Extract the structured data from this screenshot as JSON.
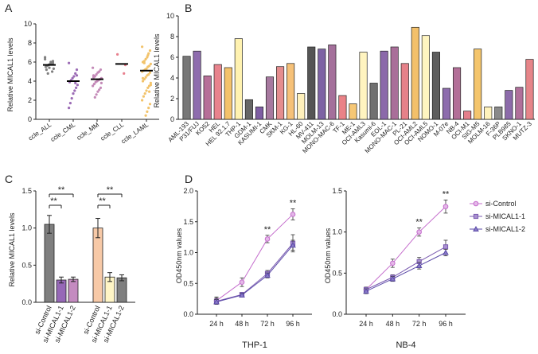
{
  "chart_data": [
    {
      "panel": "A",
      "type": "scatter",
      "ylabel": "Relative MICAL1 levels",
      "ylim": [
        0,
        10
      ],
      "yticks": [
        "0",
        "2",
        "4",
        "6",
        "8",
        "10"
      ],
      "categories": [
        "ccle_ALL",
        "ccle_CML",
        "ccle_MM",
        "ccle_CLL",
        "ccle_LAML"
      ],
      "colors": [
        "#7f7f7f",
        "#9b6bb5",
        "#c48ab8",
        "#e8808e",
        "#f2c36b"
      ],
      "medians": [
        5.7,
        4.0,
        4.2,
        5.8,
        5.1
      ],
      "points": [
        [
          6.3,
          6.1,
          5.9,
          5.8,
          5.7,
          5.6,
          5.5,
          5.3,
          5.0,
          6.0,
          5.4,
          4.8,
          5.2,
          6.5,
          5.9
        ],
        [
          5.9,
          5.2,
          4.8,
          4.5,
          4.3,
          4.1,
          3.9,
          3.6,
          3.3,
          3.0,
          2.7,
          2.2,
          1.7,
          1.2,
          4.6,
          3.8
        ],
        [
          5.4,
          5.2,
          5.0,
          4.9,
          4.7,
          4.5,
          4.4,
          4.3,
          4.2,
          4.1,
          4.0,
          3.9,
          3.7,
          3.5,
          3.3,
          3.1,
          2.9,
          2.6,
          2.3,
          4.6,
          3.8
        ],
        [
          6.8,
          5.7,
          4.8
        ],
        [
          7.6,
          7.2,
          6.9,
          6.5,
          6.3,
          6.1,
          6.0,
          5.8,
          5.6,
          5.5,
          5.3,
          5.2,
          5.1,
          5.0,
          4.9,
          4.7,
          4.6,
          4.4,
          4.2,
          4.0,
          3.8,
          3.5,
          3.3,
          3.0,
          2.7,
          2.4,
          2.0,
          1.6,
          1.2,
          0.8,
          0.4,
          5.9,
          4.3,
          3.6,
          2.9,
          6.7
        ]
      ]
    },
    {
      "panel": "B",
      "type": "bar",
      "ylabel": "Relative MICAL1 levels",
      "ylim": [
        0,
        10
      ],
      "yticks": [
        "0",
        "2",
        "4",
        "6",
        "8",
        "10"
      ],
      "categories": [
        "AML-193",
        "P31/FUJ",
        "KO52",
        "HEL",
        "HEL 92.1.7",
        "THP-1",
        "GDM-1",
        "KASUMI-1",
        "CMK",
        "SKM-1",
        "KG-1",
        "HL-60",
        "MV-411",
        "MOLM-13",
        "MONO-MAC-6",
        "TF-1",
        "ME-1",
        "OCI-AML3",
        "Kasumi-6",
        "EOL-1",
        "MONO-MAC-1",
        "PL-21",
        "OCI-AML2",
        "OCI-AML5",
        "NOMO-1",
        "M-07e",
        "NB-4",
        "OCI-M1",
        "SIG-M5",
        "MOLM-16",
        "F-36P",
        "PLB985",
        "SKNO-1",
        "MUTZ-3"
      ],
      "values": [
        6.1,
        6.6,
        4.2,
        5.3,
        5.0,
        7.8,
        1.9,
        1.2,
        4.1,
        5.1,
        5.4,
        2.5,
        7.0,
        6.8,
        7.2,
        2.3,
        1.5,
        6.5,
        3.5,
        6.6,
        7.0,
        5.4,
        8.9,
        8.1,
        6.5,
        3.0,
        5.0,
        0.8,
        6.8,
        1.2,
        1.2,
        2.8,
        3.1,
        5.8
      ],
      "colors": [
        "#777777",
        "#8e6cae",
        "#b66f98",
        "#e8838d",
        "#f4c26a",
        "#fff2b0",
        "#666666",
        "#7e5ea3",
        "#a7799f",
        "#e58d8e",
        "#f6c178",
        "#fff1bb",
        "#555555",
        "#7d63a4",
        "#a4709b",
        "#ea8287",
        "#f6c775",
        "#fff4c0",
        "#707070",
        "#8b69aa",
        "#a96e99",
        "#e68189",
        "#f3c06a",
        "#fff5c0",
        "#5d5d5d",
        "#8d6cad",
        "#b36f98",
        "#e47f8b",
        "#f4c56c",
        "#fff3bc",
        "#8a8a8a",
        "#8c6baa",
        "#b0709a",
        "#e68589"
      ]
    },
    {
      "panel": "C",
      "type": "bar",
      "ylabel": "Relative MICAL1 levels",
      "ylim": [
        0,
        1.5
      ],
      "yticks": [
        "0.0",
        "0.5",
        "1.0",
        "1.5"
      ],
      "categories": [
        "si-Control",
        "si-MICAL1-1",
        "si-MICAL1-2",
        "si-Control",
        "si-MICAL1-1",
        "si-MICAL1-2"
      ],
      "values": [
        1.05,
        0.3,
        0.31,
        1.0,
        0.34,
        0.33
      ],
      "errors": [
        0.12,
        0.04,
        0.03,
        0.13,
        0.06,
        0.04
      ],
      "colors": [
        "#7f7f7f",
        "#9668b7",
        "#c48bc0",
        "#f7c9a7",
        "#fff5c5",
        "#7f7f7f"
      ],
      "significance": "**"
    },
    {
      "panel": "D",
      "type": "line",
      "title": "THP-1",
      "ylabel": "OD450nm values",
      "ylim": [
        0,
        2.0
      ],
      "yticks": [
        "0.0",
        "0.5",
        "1.0",
        "1.5",
        "2.0"
      ],
      "categories": [
        "24 h",
        "48 h",
        "72 h",
        "96 h"
      ],
      "series": [
        {
          "name": "si-Control",
          "values": [
            0.22,
            0.52,
            1.22,
            1.62
          ],
          "errors": [
            0.06,
            0.07,
            0.06,
            0.09
          ],
          "color": "#c46ccc",
          "marker": "circle"
        },
        {
          "name": "si-MICAL1-1",
          "values": [
            0.21,
            0.32,
            0.66,
            1.15
          ],
          "errors": [
            0.05,
            0.03,
            0.05,
            0.14
          ],
          "color": "#7a5ab0",
          "marker": "square"
        },
        {
          "name": "si-MICAL1-2",
          "values": [
            0.2,
            0.31,
            0.63,
            1.12
          ],
          "errors": [
            0.04,
            0.03,
            0.04,
            0.08
          ],
          "color": "#5b4aa8",
          "marker": "triangle"
        }
      ],
      "significance": [
        "",
        "",
        "**",
        "**"
      ]
    },
    {
      "panel": "D",
      "type": "line",
      "title": "NB-4",
      "ylabel": "OD450nm values",
      "ylim": [
        0,
        1.5
      ],
      "yticks": [
        "0.0",
        "0.5",
        "1.0",
        "1.5"
      ],
      "categories": [
        "24 h",
        "48 h",
        "72 h",
        "96 h"
      ],
      "series": [
        {
          "name": "si-Control",
          "values": [
            0.3,
            0.62,
            1.0,
            1.31
          ],
          "errors": [
            0.03,
            0.05,
            0.05,
            0.08
          ],
          "color": "#c46ccc",
          "marker": "circle"
        },
        {
          "name": "si-MICAL1-1",
          "values": [
            0.3,
            0.45,
            0.64,
            0.82
          ],
          "errors": [
            0.03,
            0.03,
            0.05,
            0.08
          ],
          "color": "#7a5ab0",
          "marker": "square"
        },
        {
          "name": "si-MICAL1-2",
          "values": [
            0.28,
            0.43,
            0.59,
            0.75
          ],
          "errors": [
            0.03,
            0.03,
            0.04,
            0.04
          ],
          "color": "#5b4aa8",
          "marker": "triangle"
        }
      ],
      "significance": [
        "",
        "",
        "**",
        "**"
      ]
    }
  ],
  "panel_labels": [
    "A",
    "B",
    "C",
    "D"
  ],
  "legend": {
    "entries": [
      "si-Control",
      "si-MICAL1-1",
      "si-MICAL1-2"
    ]
  }
}
